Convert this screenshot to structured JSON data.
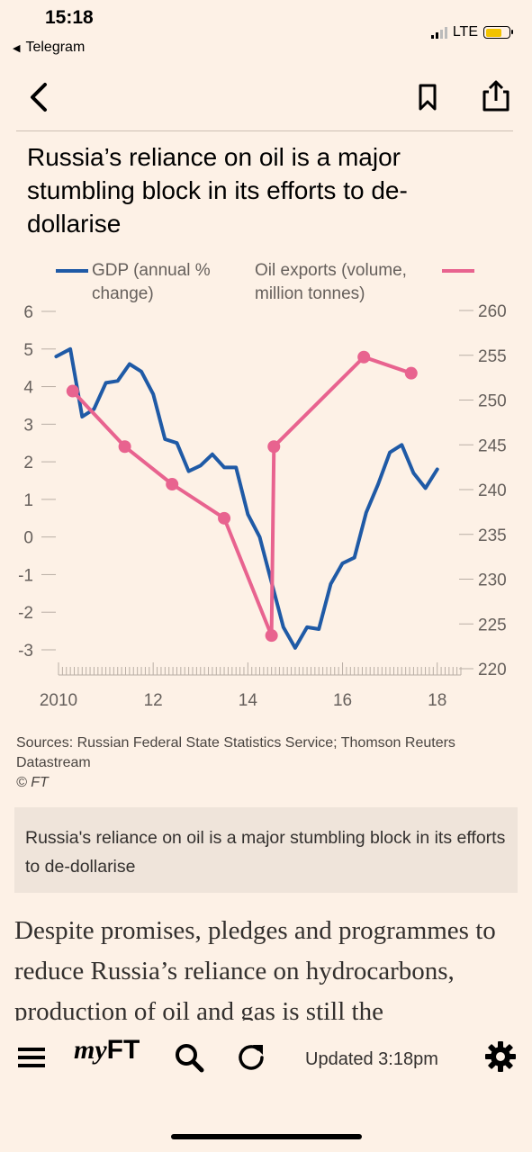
{
  "status_bar": {
    "time": "15:18",
    "back_app": "Telegram",
    "network": "LTE"
  },
  "icons": {
    "back": "chevron-left-icon",
    "bookmark": "bookmark-icon",
    "share": "share-icon",
    "menu": "hamburger-menu-icon",
    "search": "search-icon",
    "refresh": "refresh-icon",
    "settings": "gear-icon"
  },
  "colors": {
    "background": "#fdf1e6",
    "gdp_series": "#1f5aa6",
    "oil_series": "#e8638f",
    "caption_box": "#efe4da"
  },
  "chart_data": {
    "type": "line",
    "title": "Russia’s reliance on oil is a major stumbling block in its efforts to de-dollarise",
    "x_ticks": [
      "2010",
      "12",
      "14",
      "16",
      "18"
    ],
    "x_tick_values": [
      2010,
      2012,
      2014,
      2016,
      2018
    ],
    "xlim": [
      2010,
      2018.5
    ],
    "y_left": {
      "ticks": [
        "6",
        "5",
        "4",
        "3",
        "2",
        "1",
        "0",
        "-1",
        "-2",
        "-3"
      ],
      "ylim": [
        -3,
        6
      ]
    },
    "y_right": {
      "ticks": [
        "260",
        "255",
        "250",
        "245",
        "240",
        "235",
        "230",
        "225",
        "220"
      ],
      "ylim": [
        220,
        260
      ]
    },
    "legend_position": "top",
    "grid": false,
    "series": [
      {
        "name": "GDP (annual % change)",
        "axis": "left",
        "markers": false,
        "points": [
          [
            2009.95,
            4.8
          ],
          [
            2010.25,
            5.0
          ],
          [
            2010.5,
            3.2
          ],
          [
            2010.75,
            3.4
          ],
          [
            2011.0,
            4.1
          ],
          [
            2011.25,
            4.15
          ],
          [
            2011.5,
            4.6
          ],
          [
            2011.75,
            4.4
          ],
          [
            2012.0,
            3.8
          ],
          [
            2012.25,
            2.6
          ],
          [
            2012.5,
            2.5
          ],
          [
            2012.75,
            1.75
          ],
          [
            2013.0,
            1.9
          ],
          [
            2013.25,
            2.2
          ],
          [
            2013.5,
            1.85
          ],
          [
            2013.75,
            1.85
          ],
          [
            2014.0,
            0.6
          ],
          [
            2014.25,
            0.0
          ],
          [
            2014.5,
            -1.2
          ],
          [
            2014.75,
            -2.4
          ],
          [
            2015.0,
            -2.95
          ],
          [
            2015.25,
            -2.4
          ],
          [
            2015.5,
            -2.45
          ],
          [
            2015.75,
            -1.25
          ],
          [
            2016.0,
            -0.7
          ],
          [
            2016.25,
            -0.55
          ],
          [
            2016.5,
            0.65
          ],
          [
            2016.75,
            1.4
          ],
          [
            2017.0,
            2.25
          ],
          [
            2017.25,
            2.45
          ],
          [
            2017.5,
            1.7
          ],
          [
            2017.75,
            1.3
          ],
          [
            2018.0,
            1.8
          ]
        ]
      },
      {
        "name": "Oil exports (volume, million tonnes)",
        "axis": "right",
        "markers": true,
        "points": [
          [
            2010.3,
            251
          ],
          [
            2011.4,
            244.8
          ],
          [
            2012.4,
            240.6
          ],
          [
            2013.5,
            236.8
          ],
          [
            2014.5,
            223.7
          ],
          [
            2014.55,
            244.8
          ],
          [
            2016.45,
            254.8
          ],
          [
            2017.45,
            253
          ]
        ]
      }
    ],
    "sources": "Sources: Russian Federal State Statistics Service; Thomson Reuters Datastream",
    "copyright": "© FT"
  },
  "caption": "Russia's reliance on oil is a major stumbling block in its efforts to de-dollarise",
  "article": {
    "text": "Despite promises, pledges and programmes to reduce Russia’s reliance on hydrocarbons, production of oil and gas is still the"
  },
  "toolbar": {
    "myft_prefix": "my",
    "myft_suffix": "FT",
    "updated": "Updated 3:18pm"
  }
}
